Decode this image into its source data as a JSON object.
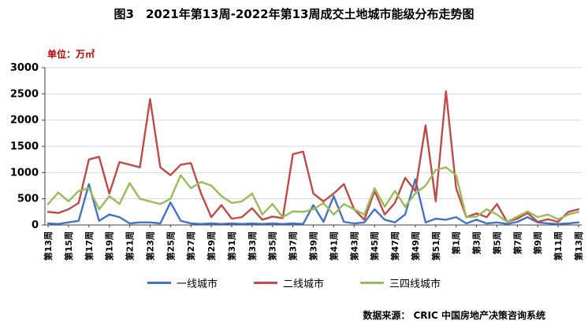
{
  "title": "图3　2021年第13周-2022年第13周成交土地城市能级分布走势图",
  "source": "数据来源： CRIC 中国房地产决策咨询系统",
  "colors": {
    "unit_text": "#c00000",
    "tier1": "#4472C4",
    "tier2": "#BE4B48",
    "tier3": "#9BBB59",
    "gridline": "#D8D8D8",
    "axis": "#404040"
  },
  "chart_data": {
    "type": "line",
    "unit_label": "单位：万㎡",
    "ylim": [
      0,
      3000
    ],
    "ytick_step": 500,
    "grid": "horizontal",
    "legend_position": "bottom",
    "n_points": 53,
    "x_tick_step": 2,
    "x_tick_labels": [
      "第13周",
      "第15周",
      "第17周",
      "第19周",
      "第21周",
      "第23周",
      "第25周",
      "第27周",
      "第29周",
      "第31周",
      "第33周",
      "第35周",
      "第37周",
      "第39周",
      "第41周",
      "第43周",
      "第45周",
      "第47周",
      "第49周",
      "第51周",
      "第1周",
      "第3周",
      "第5周",
      "第7周",
      "第9周",
      "第11周",
      "第13周"
    ],
    "series": [
      {
        "name": "一线城市",
        "color": "#4472C4",
        "values": [
          30,
          20,
          50,
          80,
          780,
          80,
          200,
          150,
          30,
          50,
          50,
          30,
          430,
          80,
          30,
          20,
          30,
          20,
          30,
          20,
          30,
          20,
          30,
          20,
          30,
          20,
          380,
          60,
          550,
          60,
          30,
          50,
          300,
          100,
          50,
          200,
          870,
          50,
          120,
          100,
          150,
          30,
          100,
          30,
          50,
          20,
          60,
          150,
          50,
          30,
          20,
          30,
          50
        ]
      },
      {
        "name": "二线城市",
        "color": "#BE4B48",
        "values": [
          250,
          230,
          300,
          420,
          1250,
          1300,
          600,
          1200,
          1150,
          1100,
          2400,
          1100,
          950,
          1150,
          1180,
          600,
          150,
          380,
          120,
          150,
          320,
          100,
          160,
          130,
          1350,
          1400,
          600,
          450,
          600,
          780,
          300,
          100,
          650,
          200,
          420,
          900,
          650,
          1900,
          450,
          2550,
          700,
          150,
          220,
          150,
          400,
          60,
          120,
          230,
          60,
          110,
          60,
          250,
          300
        ]
      },
      {
        "name": "三四线城市",
        "color": "#9BBB59",
        "values": [
          400,
          620,
          450,
          650,
          700,
          300,
          550,
          400,
          800,
          500,
          450,
          400,
          500,
          950,
          700,
          820,
          750,
          550,
          420,
          450,
          600,
          200,
          400,
          150,
          260,
          250,
          300,
          420,
          200,
          400,
          300,
          200,
          700,
          350,
          650,
          350,
          600,
          750,
          1050,
          1100,
          950,
          150,
          160,
          300,
          200,
          60,
          160,
          260,
          150,
          200,
          110,
          200,
          250
        ]
      }
    ]
  }
}
